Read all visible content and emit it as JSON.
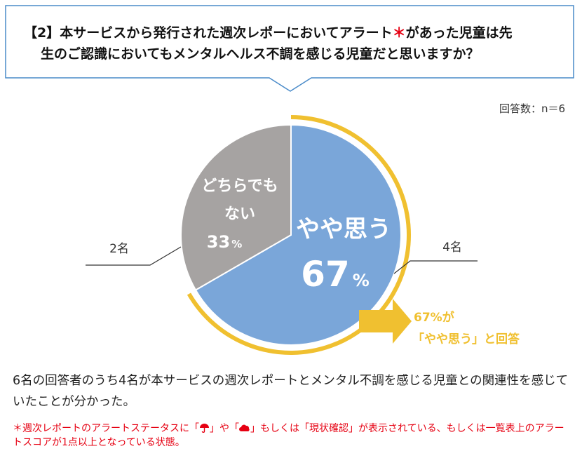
{
  "question": {
    "line1_a": "【2】本サービスから発行された週次レポーにおいてアラート",
    "asterisk": "＊",
    "line1_b": "があった児童は先",
    "line2": "生のご認識においてもメンタルヘルス不調を感じる児童だと思いますか？"
  },
  "respondents": "回答数：n＝6",
  "chart_data": {
    "type": "pie",
    "title": "",
    "total": 6,
    "series": [
      {
        "name": "やや思う",
        "value": 4,
        "percent": 67,
        "count_label": "4名",
        "color": "#7aa6d9"
      },
      {
        "name": "どちらでもない",
        "value": 2,
        "percent": 33,
        "count_label": "2名",
        "color": "#a6a3a2"
      }
    ],
    "labels": {
      "a_line1": "やや思う",
      "a_num": "67",
      "a_pct": "%",
      "b_line1": "どちらでも",
      "b_line2": "ない",
      "b_num": "33",
      "b_pct": "%"
    },
    "highlight_color": "#f0c030",
    "callout_line1": "67%が",
    "callout_line2": "「やや思う」と回答"
  },
  "summary": "6名の回答者のうち4名が本サービスの週次レポートとメンタル不調を感じる児童との関連性を感じていたことが分かった。",
  "footnote": {
    "part1": "＊週次レポートのアラートステータスに「",
    "part2": "」や「",
    "part3": "」もしくは「現状確認」が表示されている、もしくは一覧表上のアラートスコアが1点以上となっている状態。"
  }
}
